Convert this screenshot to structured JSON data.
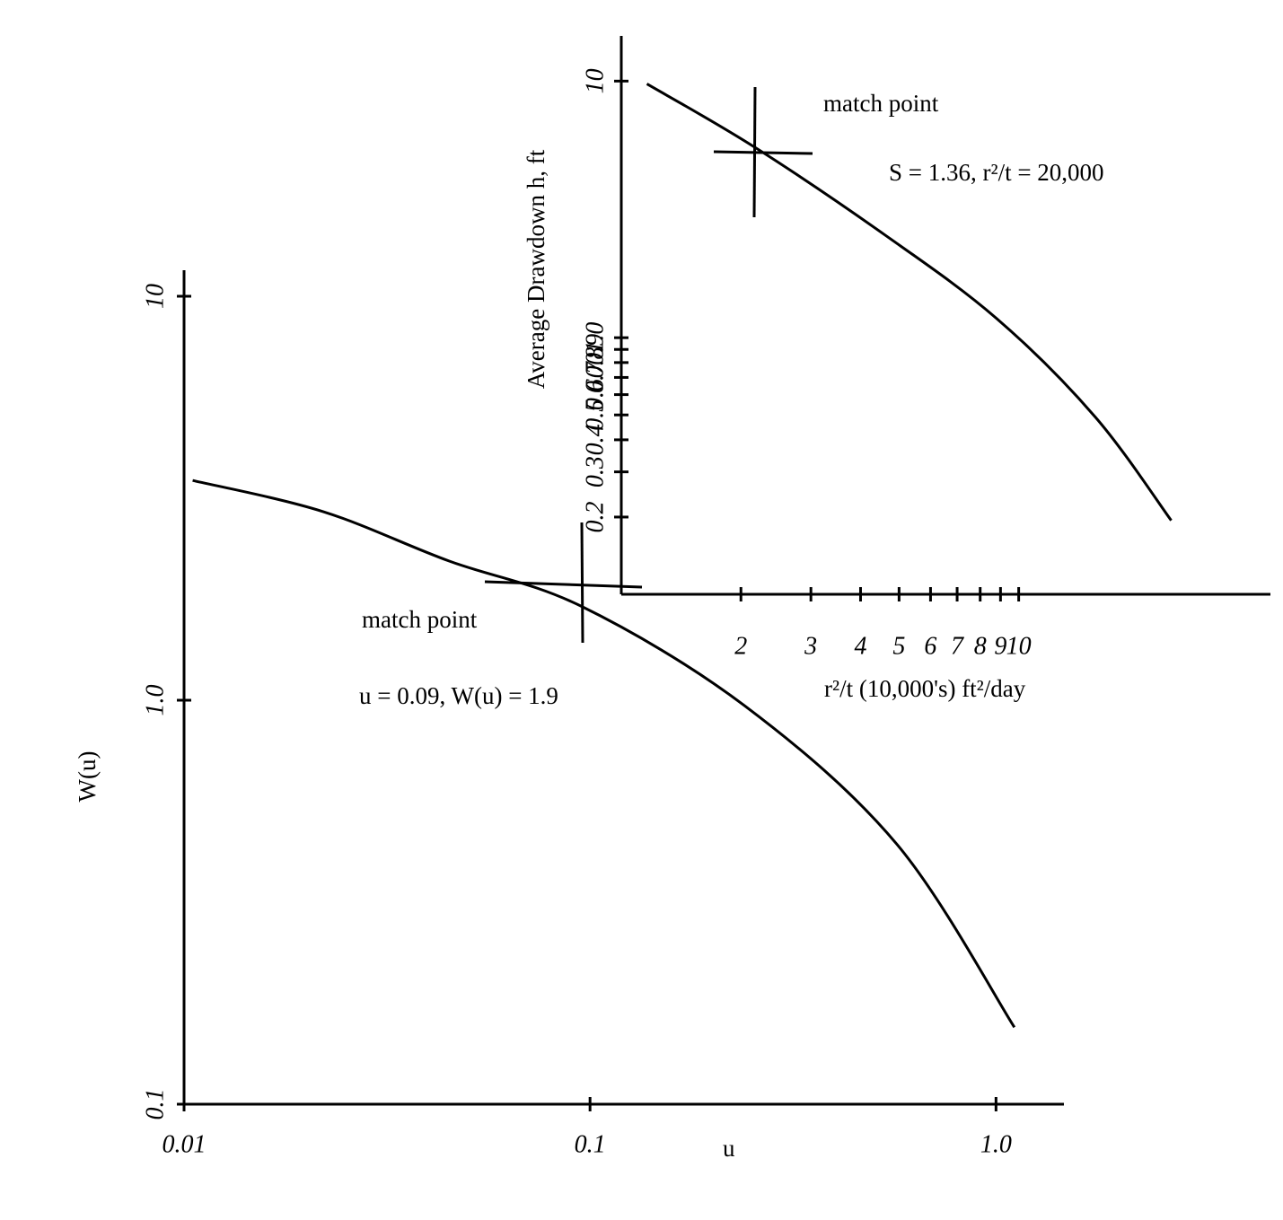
{
  "chart_data": [
    {
      "type": "line",
      "x_label": "u",
      "y_label": "W(u)",
      "log_x": true,
      "log_y": true,
      "xlim": [
        0.01,
        1.47
      ],
      "ylim": [
        0.1,
        11.6
      ],
      "xticks": [
        0.01,
        0.1,
        {
          "value": 1,
          "label": "1.0"
        }
      ],
      "yticks": [
        0.1,
        {
          "value": 1,
          "label": "1.0"
        },
        10
      ],
      "x": [
        0.0105,
        0.022,
        0.045,
        0.095,
        0.24,
        0.57,
        1.11
      ],
      "series": [
        {
          "color": "#000000",
          "values": [
            3.5,
            2.93,
            2.21,
            1.71,
            0.97,
            0.44,
            0.155
          ]
        }
      ],
      "annotations": [
        "match point",
        "u = 0.09, W(u) = 1.9"
      ]
    },
    {
      "type": "line",
      "x_label": "r²/t (10,000's) ft²/day",
      "y_label": "Average Drawdown h, ft",
      "log_x": true,
      "log_y": true,
      "xlim": [
        1,
        43
      ],
      "ylim": [
        0.1,
        15
      ],
      "xticks": [
        2,
        3,
        4,
        5,
        6,
        7,
        8,
        9,
        10
      ],
      "yticks": [
        0.2,
        0.3,
        0.4,
        0.5,
        0.6,
        0.7,
        0.8,
        0.9,
        {
          "value": 1,
          "label": "1.0"
        },
        10
      ],
      "x": [
        1.16,
        2.16,
        4.58,
        8.79,
        15.6,
        24.2
      ],
      "series": [
        {
          "color": "#000000",
          "values": [
            9.75,
            5.54,
            2.53,
            1.19,
            0.49,
            0.194
          ]
        }
      ],
      "annotations": [
        "match point",
        "S = 1.36,  r²/t = 20,000"
      ]
    }
  ]
}
